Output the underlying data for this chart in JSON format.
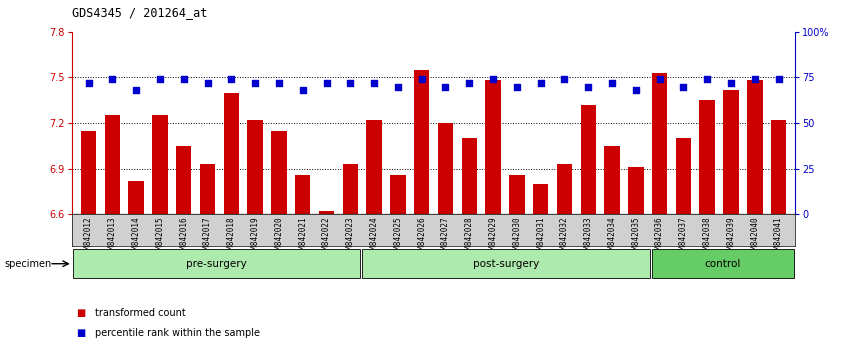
{
  "title": "GDS4345 / 201264_at",
  "samples": [
    "GSM842012",
    "GSM842013",
    "GSM842014",
    "GSM842015",
    "GSM842016",
    "GSM842017",
    "GSM842018",
    "GSM842019",
    "GSM842020",
    "GSM842021",
    "GSM842022",
    "GSM842023",
    "GSM842024",
    "GSM842025",
    "GSM842026",
    "GSM842027",
    "GSM842028",
    "GSM842029",
    "GSM842030",
    "GSM842031",
    "GSM842032",
    "GSM842033",
    "GSM842034",
    "GSM842035",
    "GSM842036",
    "GSM842037",
    "GSM842038",
    "GSM842039",
    "GSM842040",
    "GSM842041"
  ],
  "bar_values": [
    7.15,
    7.25,
    6.82,
    7.25,
    7.05,
    6.93,
    7.4,
    7.22,
    7.15,
    6.86,
    6.62,
    6.93,
    7.22,
    6.86,
    7.55,
    7.2,
    7.1,
    7.48,
    6.86,
    6.8,
    6.93,
    7.32,
    7.05,
    6.91,
    7.53,
    7.1,
    7.35,
    7.42,
    7.48,
    7.22
  ],
  "percentile_values": [
    72,
    74,
    68,
    74,
    74,
    72,
    74,
    72,
    72,
    68,
    72,
    72,
    72,
    70,
    74,
    70,
    72,
    74,
    70,
    72,
    74,
    70,
    72,
    68,
    74,
    70,
    74,
    72,
    74,
    74
  ],
  "groups": [
    {
      "label": "pre-surgery",
      "start": 0,
      "end": 12
    },
    {
      "label": "post-surgery",
      "start": 12,
      "end": 24
    },
    {
      "label": "control",
      "start": 24,
      "end": 30
    }
  ],
  "group_colors": [
    "#aeeaae",
    "#aeeaae",
    "#66cc66"
  ],
  "bar_color": "#cc0000",
  "dot_color": "#0000cc",
  "ylim_left": [
    6.6,
    7.8
  ],
  "ylim_right": [
    0,
    100
  ],
  "yticks_left": [
    6.6,
    6.9,
    7.2,
    7.5,
    7.8
  ],
  "yticks_right": [
    0,
    25,
    50,
    75,
    100
  ],
  "ytick_labels_right": [
    "0",
    "25",
    "50",
    "75",
    "100%"
  ],
  "hlines": [
    6.9,
    7.2,
    7.5
  ],
  "bg_color": "#ffffff",
  "plot_bg": "#ffffff",
  "specimen_label": "specimen"
}
